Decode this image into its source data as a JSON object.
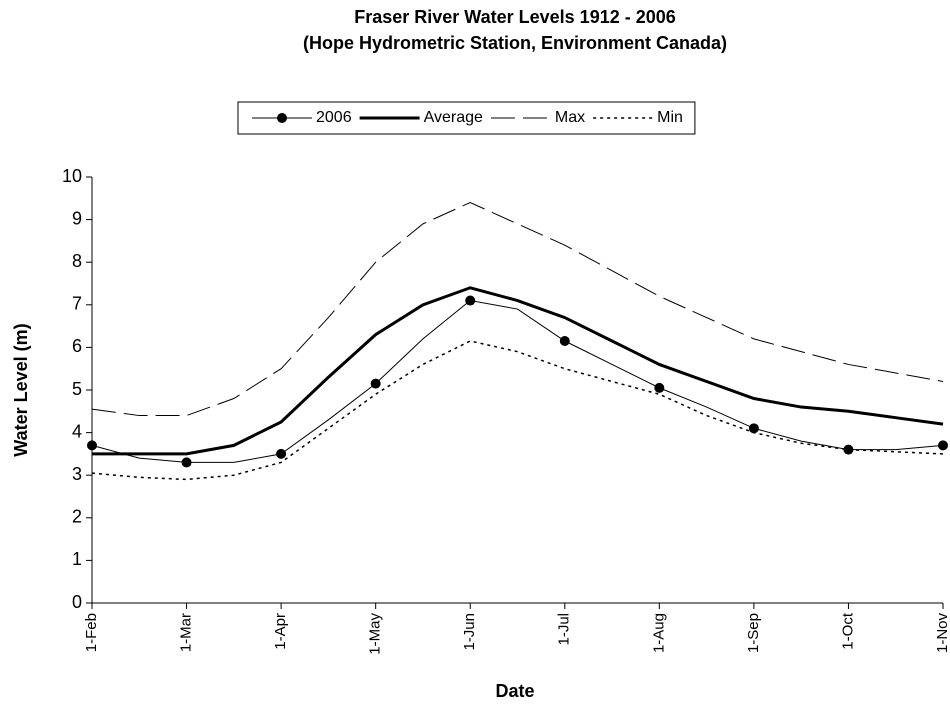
{
  "chart_data": {
    "type": "line",
    "title": "Fraser River Water Levels 1912 - 2006",
    "subtitle": "(Hope Hydrometric Station, Environment Canada)",
    "x_label": "Date",
    "y_label": "Water Level (m)",
    "categories": [
      "1-Feb",
      null,
      "1-Mar",
      null,
      "1-Apr",
      null,
      "1-May",
      null,
      "1-Jun",
      null,
      "1-Jul",
      null,
      "1-Aug",
      null,
      "1-Sep",
      null,
      "1-Oct",
      null,
      "1-Nov"
    ],
    "series": [
      {
        "name": "2006",
        "color": "#000000",
        "width": 1,
        "style": "solid",
        "marker": "circle",
        "values": [
          3.7,
          3.4,
          3.3,
          3.3,
          3.5,
          4.3,
          5.15,
          6.2,
          7.1,
          6.9,
          6.15,
          5.6,
          5.05,
          4.6,
          4.1,
          3.8,
          3.6,
          3.6,
          3.7
        ]
      },
      {
        "name": "Average",
        "color": "#000000",
        "width": 3,
        "style": "solid",
        "values": [
          3.5,
          3.5,
          3.5,
          3.7,
          4.25,
          5.3,
          6.3,
          7.0,
          7.4,
          7.1,
          6.7,
          6.15,
          5.6,
          5.2,
          4.8,
          4.6,
          4.5,
          4.35,
          4.2
        ]
      },
      {
        "name": "Max",
        "color": "#000000",
        "width": 1,
        "style": "dashed",
        "values": [
          4.55,
          4.4,
          4.4,
          4.8,
          5.5,
          6.7,
          8.0,
          8.9,
          9.4,
          8.9,
          8.4,
          7.8,
          7.2,
          6.7,
          6.2,
          5.9,
          5.6,
          5.4,
          5.2
        ]
      },
      {
        "name": "Min",
        "color": "#000000",
        "width": 1.5,
        "style": "dotted",
        "values": [
          3.05,
          2.95,
          2.9,
          3.0,
          3.3,
          4.1,
          4.9,
          5.6,
          6.15,
          5.9,
          5.5,
          5.2,
          4.9,
          4.4,
          4.0,
          3.75,
          3.6,
          3.55,
          3.5
        ]
      }
    ],
    "ylim": [
      0,
      10
    ],
    "yticks": [
      0,
      1,
      2,
      3,
      4,
      5,
      6,
      7,
      8,
      9,
      10
    ],
    "grid": false,
    "legend": "top"
  }
}
